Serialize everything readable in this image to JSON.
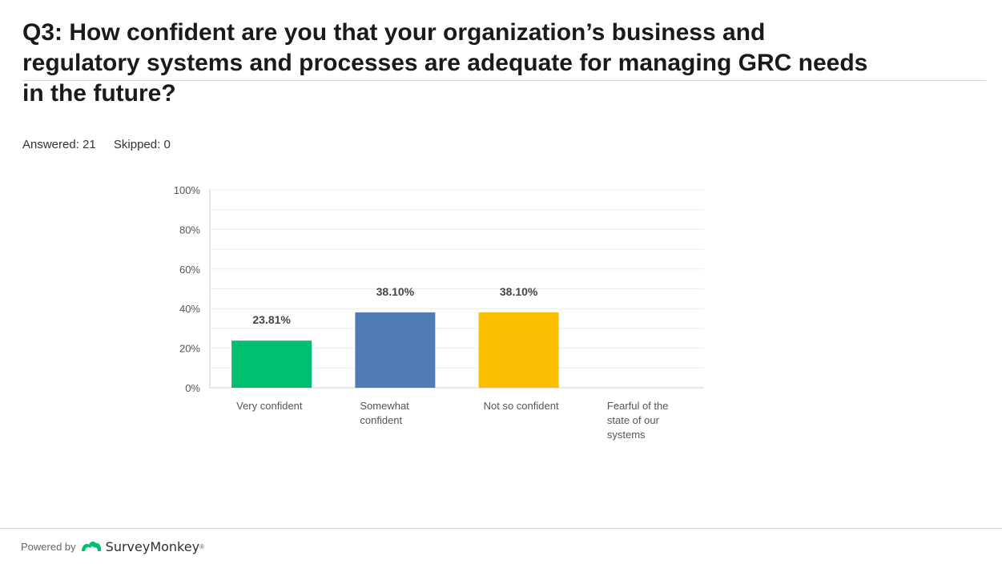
{
  "question": {
    "title": "Q3: How confident are you that your organization’s business and\nregulatory systems and processes are adequate for managing GRC needs\nin the future?",
    "answered": "Answered: 21",
    "skipped": "Skipped: 0"
  },
  "chart_data": {
    "type": "bar",
    "categories": [
      "Very confident",
      "Somewhat confident",
      "Not so confident",
      "Fearful of the state of our systems"
    ],
    "category_lines": [
      [
        "Very confident"
      ],
      [
        "Somewhat",
        "confident"
      ],
      [
        "Not so confident"
      ],
      [
        "Fearful of the",
        "state of our",
        "systems"
      ]
    ],
    "values": [
      23.81,
      38.1,
      38.1,
      0
    ],
    "value_labels": [
      "23.81%",
      "38.10%",
      "38.10%",
      ""
    ],
    "colors": [
      "#00bf6f",
      "#507cb6",
      "#f9be00",
      "#6bc8cd"
    ],
    "yticks": [
      "0%",
      "20%",
      "40%",
      "60%",
      "80%",
      "100%"
    ],
    "ylim": [
      0,
      100
    ],
    "grid": true
  },
  "footer": {
    "powered_by": "Powered by",
    "brand": "SurveyMonkey",
    "trademark": "®",
    "logo_icon": "surveymonkey-logo-icon"
  }
}
